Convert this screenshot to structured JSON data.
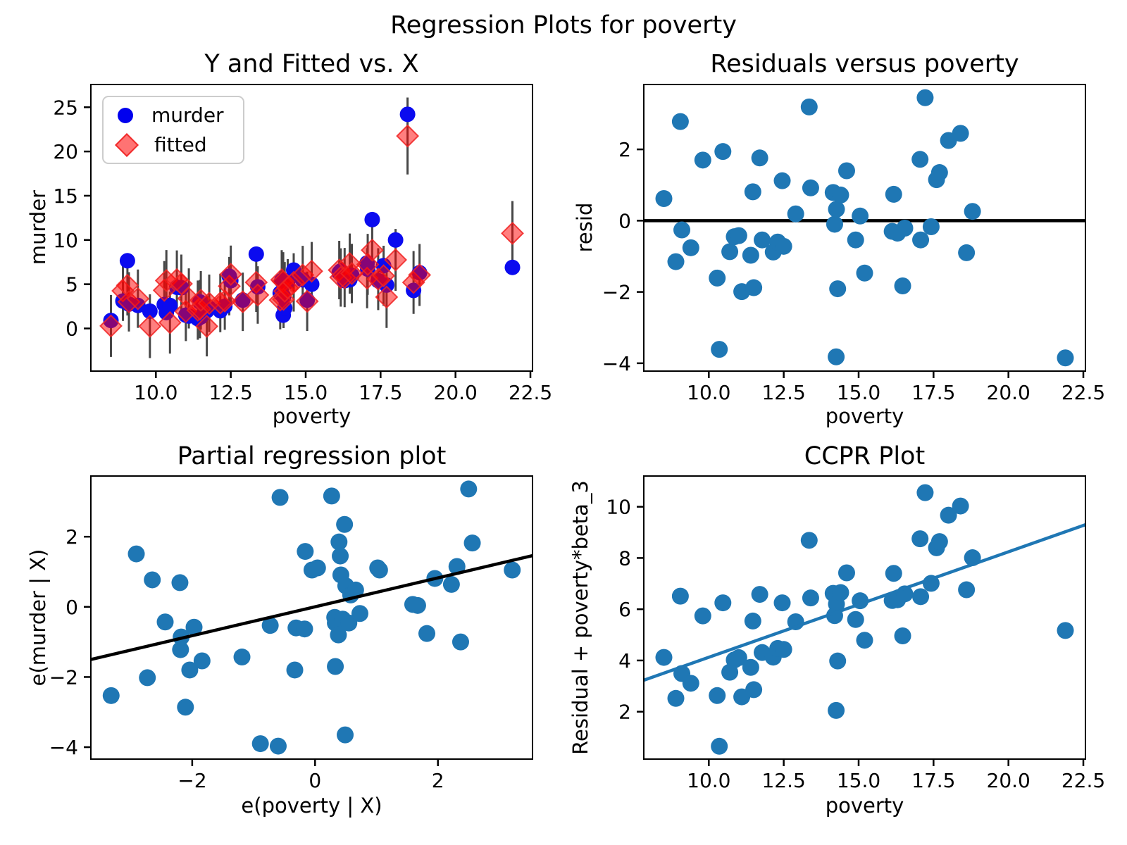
{
  "figure": {
    "suptitle": "Regression Plots for poverty",
    "background": "#ffffff",
    "axis_color": "#000000"
  },
  "chart_data": [
    {
      "id": "y-and-fitted-vs-x",
      "type": "fit_scatter",
      "title": "Y and Fitted vs. X",
      "xlabel": "poverty",
      "ylabel": "murder",
      "xlim": [
        7.83,
        22.57
      ],
      "ylim": [
        -4.82,
        27.57
      ],
      "xticks": [
        {
          "v": 10.0,
          "label": "10.0"
        },
        {
          "v": 12.5,
          "label": "12.5"
        },
        {
          "v": 15.0,
          "label": "15.0"
        },
        {
          "v": 17.5,
          "label": "17.5"
        },
        {
          "v": 20.0,
          "label": "20.0"
        },
        {
          "v": 22.5,
          "label": "22.5"
        }
      ],
      "yticks": [
        {
          "v": 0,
          "label": "0"
        },
        {
          "v": 5,
          "label": "5"
        },
        {
          "v": 10,
          "label": "10"
        },
        {
          "v": 15,
          "label": "15"
        },
        {
          "v": 20,
          "label": "20"
        },
        {
          "v": 25,
          "label": "25"
        }
      ],
      "legend": [
        {
          "label": "murder",
          "marker": "circle",
          "color": "#0000ee"
        },
        {
          "label": "fitted",
          "marker": "diamond",
          "color": "#ff0000"
        }
      ],
      "colors": {
        "murder": "#0b0bef",
        "fitted_fill": "rgba(255,0,0,0.5)",
        "fitted_edge": "rgba(240,35,35,0.85)",
        "errorbar": "#474747"
      },
      "x": [
        8.5,
        8.9,
        9.05,
        9.1,
        9.4,
        9.8,
        10.28,
        10.35,
        10.47,
        10.7,
        10.85,
        11.0,
        11.1,
        11.4,
        11.47,
        11.5,
        11.7,
        11.78,
        12.15,
        12.3,
        12.45,
        12.5,
        12.9,
        13.35,
        13.4,
        14.15,
        14.2,
        14.25,
        14.26,
        14.3,
        14.4,
        14.6,
        14.9,
        15.05,
        15.2,
        16.12,
        16.17,
        16.3,
        16.47,
        16.54,
        17.05,
        17.07,
        17.22,
        17.42,
        17.6,
        17.7,
        18.0,
        18.4,
        18.6,
        18.8,
        21.9
      ],
      "murder": [
        0.9,
        3.1,
        7.65,
        2.75,
        2.6,
        1.95,
        2.7,
        1.8,
        2.6,
        4.65,
        4.6,
        1.5,
        1.4,
        1.1,
        3.0,
        1.3,
        2.0,
        2.3,
        2.0,
        2.5,
        5.9,
        5.4,
        3.2,
        8.4,
        4.7,
        4.0,
        5.4,
        1.5,
        3.6,
        2.3,
        5.3,
        6.6,
        5.5,
        3.2,
        5.0,
        6.3,
        6.5,
        5.4,
        5.5,
        6.0,
        7.4,
        6.7,
        12.3,
        5.4,
        7.1,
        4.9,
        10.0,
        24.2,
        4.3,
        6.3,
        6.9
      ],
      "fitted": [
        0.28,
        4.25,
        4.87,
        3.01,
        3.36,
        0.25,
        4.31,
        5.41,
        0.66,
        5.52,
        5.05,
        1.92,
        3.39,
        2.07,
        2.19,
        3.18,
        0.24,
        2.84,
        2.88,
        3.1,
        4.78,
        6.12,
        3.01,
        5.21,
        3.78,
        3.21,
        5.5,
        5.32,
        3.28,
        4.21,
        4.58,
        5.2,
        6.04,
        3.07,
        6.47,
        6.6,
        5.76,
        5.75,
        7.33,
        6.21,
        5.68,
        7.24,
        8.85,
        5.57,
        5.95,
        3.55,
        7.75,
        21.75,
        5.2,
        6.04,
        10.75
      ],
      "err": [
        3.5,
        3.4,
        3.4,
        3.35,
        3.3,
        3.6,
        3.3,
        3.45,
        3.5,
        3.3,
        3.3,
        3.35,
        3.4,
        3.35,
        3.3,
        3.3,
        3.4,
        3.25,
        3.3,
        3.25,
        3.3,
        3.25,
        3.3,
        3.35,
        3.25,
        3.3,
        3.35,
        3.3,
        3.25,
        3.3,
        3.25,
        3.3,
        3.3,
        3.35,
        3.3,
        3.3,
        3.3,
        3.35,
        3.4,
        3.35,
        3.4,
        3.45,
        3.45,
        3.5,
        3.4,
        3.5,
        3.5,
        4.35,
        3.55,
        3.5,
        3.65
      ]
    },
    {
      "id": "residuals-vs-poverty",
      "type": "scatter_hline",
      "title": "Residuals versus poverty",
      "xlabel": "poverty",
      "ylabel": "resid",
      "xlim": [
        7.83,
        22.57
      ],
      "ylim": [
        -4.22,
        3.82
      ],
      "xticks": [
        {
          "v": 10.0,
          "label": "10.0"
        },
        {
          "v": 12.5,
          "label": "12.5"
        },
        {
          "v": 15.0,
          "label": "15.0"
        },
        {
          "v": 17.5,
          "label": "17.5"
        },
        {
          "v": 20.0,
          "label": "20.0"
        },
        {
          "v": 22.5,
          "label": "22.5"
        }
      ],
      "yticks": [
        {
          "v": -4,
          "label": "−4"
        },
        {
          "v": -2,
          "label": "−2"
        },
        {
          "v": 0,
          "label": "0"
        },
        {
          "v": 2,
          "label": "2"
        }
      ],
      "point_color": "#1f77b4",
      "line": {
        "x": [
          7.83,
          22.57
        ],
        "y": [
          0,
          0
        ],
        "color": "#000000"
      },
      "line_under": true,
      "x": [
        8.5,
        8.9,
        9.05,
        9.1,
        9.4,
        9.8,
        10.28,
        10.35,
        10.47,
        10.7,
        10.85,
        11.0,
        11.1,
        11.4,
        11.47,
        11.5,
        11.7,
        11.78,
        12.15,
        12.3,
        12.45,
        12.5,
        12.9,
        13.35,
        13.4,
        14.15,
        14.2,
        14.25,
        14.26,
        14.3,
        14.4,
        14.6,
        14.9,
        15.05,
        15.2,
        16.12,
        16.17,
        16.3,
        16.47,
        16.54,
        17.05,
        17.07,
        17.22,
        17.42,
        17.6,
        17.7,
        18.0,
        18.4,
        18.6,
        18.8,
        21.9
      ],
      "y": [
        0.62,
        -1.15,
        2.78,
        -0.26,
        -0.76,
        1.7,
        -1.61,
        -3.61,
        1.94,
        -0.87,
        -0.45,
        -0.42,
        -1.99,
        -0.97,
        0.81,
        -1.88,
        1.76,
        -0.54,
        -0.88,
        -0.6,
        1.12,
        -0.72,
        0.19,
        3.19,
        0.92,
        0.79,
        -0.1,
        -3.82,
        0.32,
        -1.91,
        0.72,
        1.4,
        -0.54,
        0.13,
        -1.47,
        -0.3,
        0.74,
        -0.35,
        -1.83,
        -0.21,
        1.72,
        -0.54,
        3.45,
        -0.17,
        1.15,
        1.35,
        2.25,
        2.45,
        -0.9,
        0.26,
        -3.85
      ]
    },
    {
      "id": "partial-regression",
      "type": "scatter_line",
      "title": "Partial regression plot",
      "xlabel": "e(poverty | X)",
      "ylabel": "e(murder | X)",
      "xlim": [
        -3.65,
        3.54
      ],
      "ylim": [
        -4.34,
        3.73
      ],
      "xticks": [
        {
          "v": -2,
          "label": "−2"
        },
        {
          "v": 0,
          "label": "0"
        },
        {
          "v": 2,
          "label": "2"
        }
      ],
      "yticks": [
        {
          "v": -4,
          "label": "−4"
        },
        {
          "v": -2,
          "label": "−2"
        },
        {
          "v": 0,
          "label": "0"
        },
        {
          "v": 2,
          "label": "2"
        }
      ],
      "point_color": "#1f77b4",
      "line": {
        "x": [
          -3.65,
          3.54
        ],
        "y": [
          -1.5,
          1.46
        ],
        "color": "#000000"
      },
      "line_under": false,
      "x": [
        -3.32,
        -2.91,
        -2.73,
        -2.65,
        -2.44,
        -2.2,
        -2.19,
        -2.18,
        -2.11,
        -2.04,
        -1.97,
        -1.84,
        -1.19,
        -0.89,
        -0.73,
        -0.6,
        -0.57,
        -0.33,
        -0.31,
        -0.17,
        -0.16,
        -0.05,
        0.04,
        0.27,
        0.32,
        0.33,
        0.33,
        0.38,
        0.39,
        0.41,
        0.42,
        0.45,
        0.48,
        0.49,
        0.5,
        0.55,
        0.58,
        0.66,
        0.73,
        1.02,
        1.05,
        1.59,
        1.67,
        1.82,
        1.95,
        2.22,
        2.31,
        2.37,
        2.5,
        2.56,
        3.21
      ],
      "y": [
        -2.53,
        1.51,
        -2.02,
        0.77,
        -0.43,
        0.69,
        -1.22,
        -0.86,
        -2.86,
        -1.8,
        -0.58,
        -1.54,
        -1.43,
        -3.9,
        -0.53,
        -3.97,
        3.12,
        -1.8,
        -0.6,
        -0.63,
        1.58,
        1.05,
        1.11,
        3.16,
        -0.3,
        -0.46,
        -1.7,
        -0.8,
        1.85,
        1.45,
        0.91,
        -0.35,
        2.35,
        -3.65,
        0.6,
        -0.46,
        0.34,
        0.48,
        -0.19,
        1.11,
        1.05,
        0.07,
        0.04,
        -0.76,
        0.81,
        0.64,
        1.15,
        -1.0,
        3.36,
        1.82,
        1.05
      ]
    },
    {
      "id": "ccpr",
      "type": "scatter_line",
      "title": "CCPR Plot",
      "xlabel": "poverty",
      "ylabel": "Residual + poverty*beta_3",
      "xlim": [
        7.83,
        22.57
      ],
      "ylim": [
        0.15,
        11.2
      ],
      "xticks": [
        {
          "v": 10.0,
          "label": "10.0"
        },
        {
          "v": 12.5,
          "label": "12.5"
        },
        {
          "v": 15.0,
          "label": "15.0"
        },
        {
          "v": 17.5,
          "label": "17.5"
        },
        {
          "v": 20.0,
          "label": "20.0"
        },
        {
          "v": 22.5,
          "label": "22.5"
        }
      ],
      "yticks": [
        {
          "v": 2,
          "label": "2"
        },
        {
          "v": 4,
          "label": "4"
        },
        {
          "v": 6,
          "label": "6"
        },
        {
          "v": 8,
          "label": "8"
        },
        {
          "v": 10,
          "label": "10"
        }
      ],
      "point_color": "#1f77b4",
      "line": {
        "x": [
          7.83,
          22.57
        ],
        "y": [
          3.23,
          9.3
        ],
        "color": "#1f77b4"
      },
      "line_under": false,
      "x": [
        8.5,
        8.9,
        9.05,
        9.1,
        9.4,
        9.8,
        10.28,
        10.35,
        10.47,
        10.7,
        10.85,
        11.0,
        11.1,
        11.4,
        11.47,
        11.5,
        11.7,
        11.78,
        12.15,
        12.3,
        12.45,
        12.5,
        12.9,
        13.35,
        13.4,
        14.15,
        14.2,
        14.25,
        14.26,
        14.3,
        14.4,
        14.6,
        14.9,
        15.05,
        15.2,
        16.12,
        16.17,
        16.3,
        16.47,
        16.54,
        17.05,
        17.07,
        17.22,
        17.42,
        17.6,
        17.7,
        18.0,
        18.4,
        18.6,
        18.8,
        21.9
      ],
      "y": [
        4.12,
        2.52,
        6.51,
        3.49,
        3.11,
        5.74,
        2.63,
        0.65,
        6.25,
        3.54,
        4.02,
        4.11,
        2.58,
        3.73,
        5.54,
        2.86,
        6.58,
        4.31,
        4.13,
        4.47,
        6.25,
        4.43,
        5.51,
        8.69,
        6.44,
        6.62,
        5.75,
        2.05,
        6.2,
        3.98,
        6.65,
        7.42,
        5.6,
        6.33,
        4.79,
        6.34,
        7.4,
        6.37,
        4.96,
        6.6,
        8.75,
        6.49,
        10.55,
        7.01,
        8.4,
        8.64,
        9.67,
        10.03,
        6.76,
        8.01,
        5.17
      ]
    }
  ]
}
